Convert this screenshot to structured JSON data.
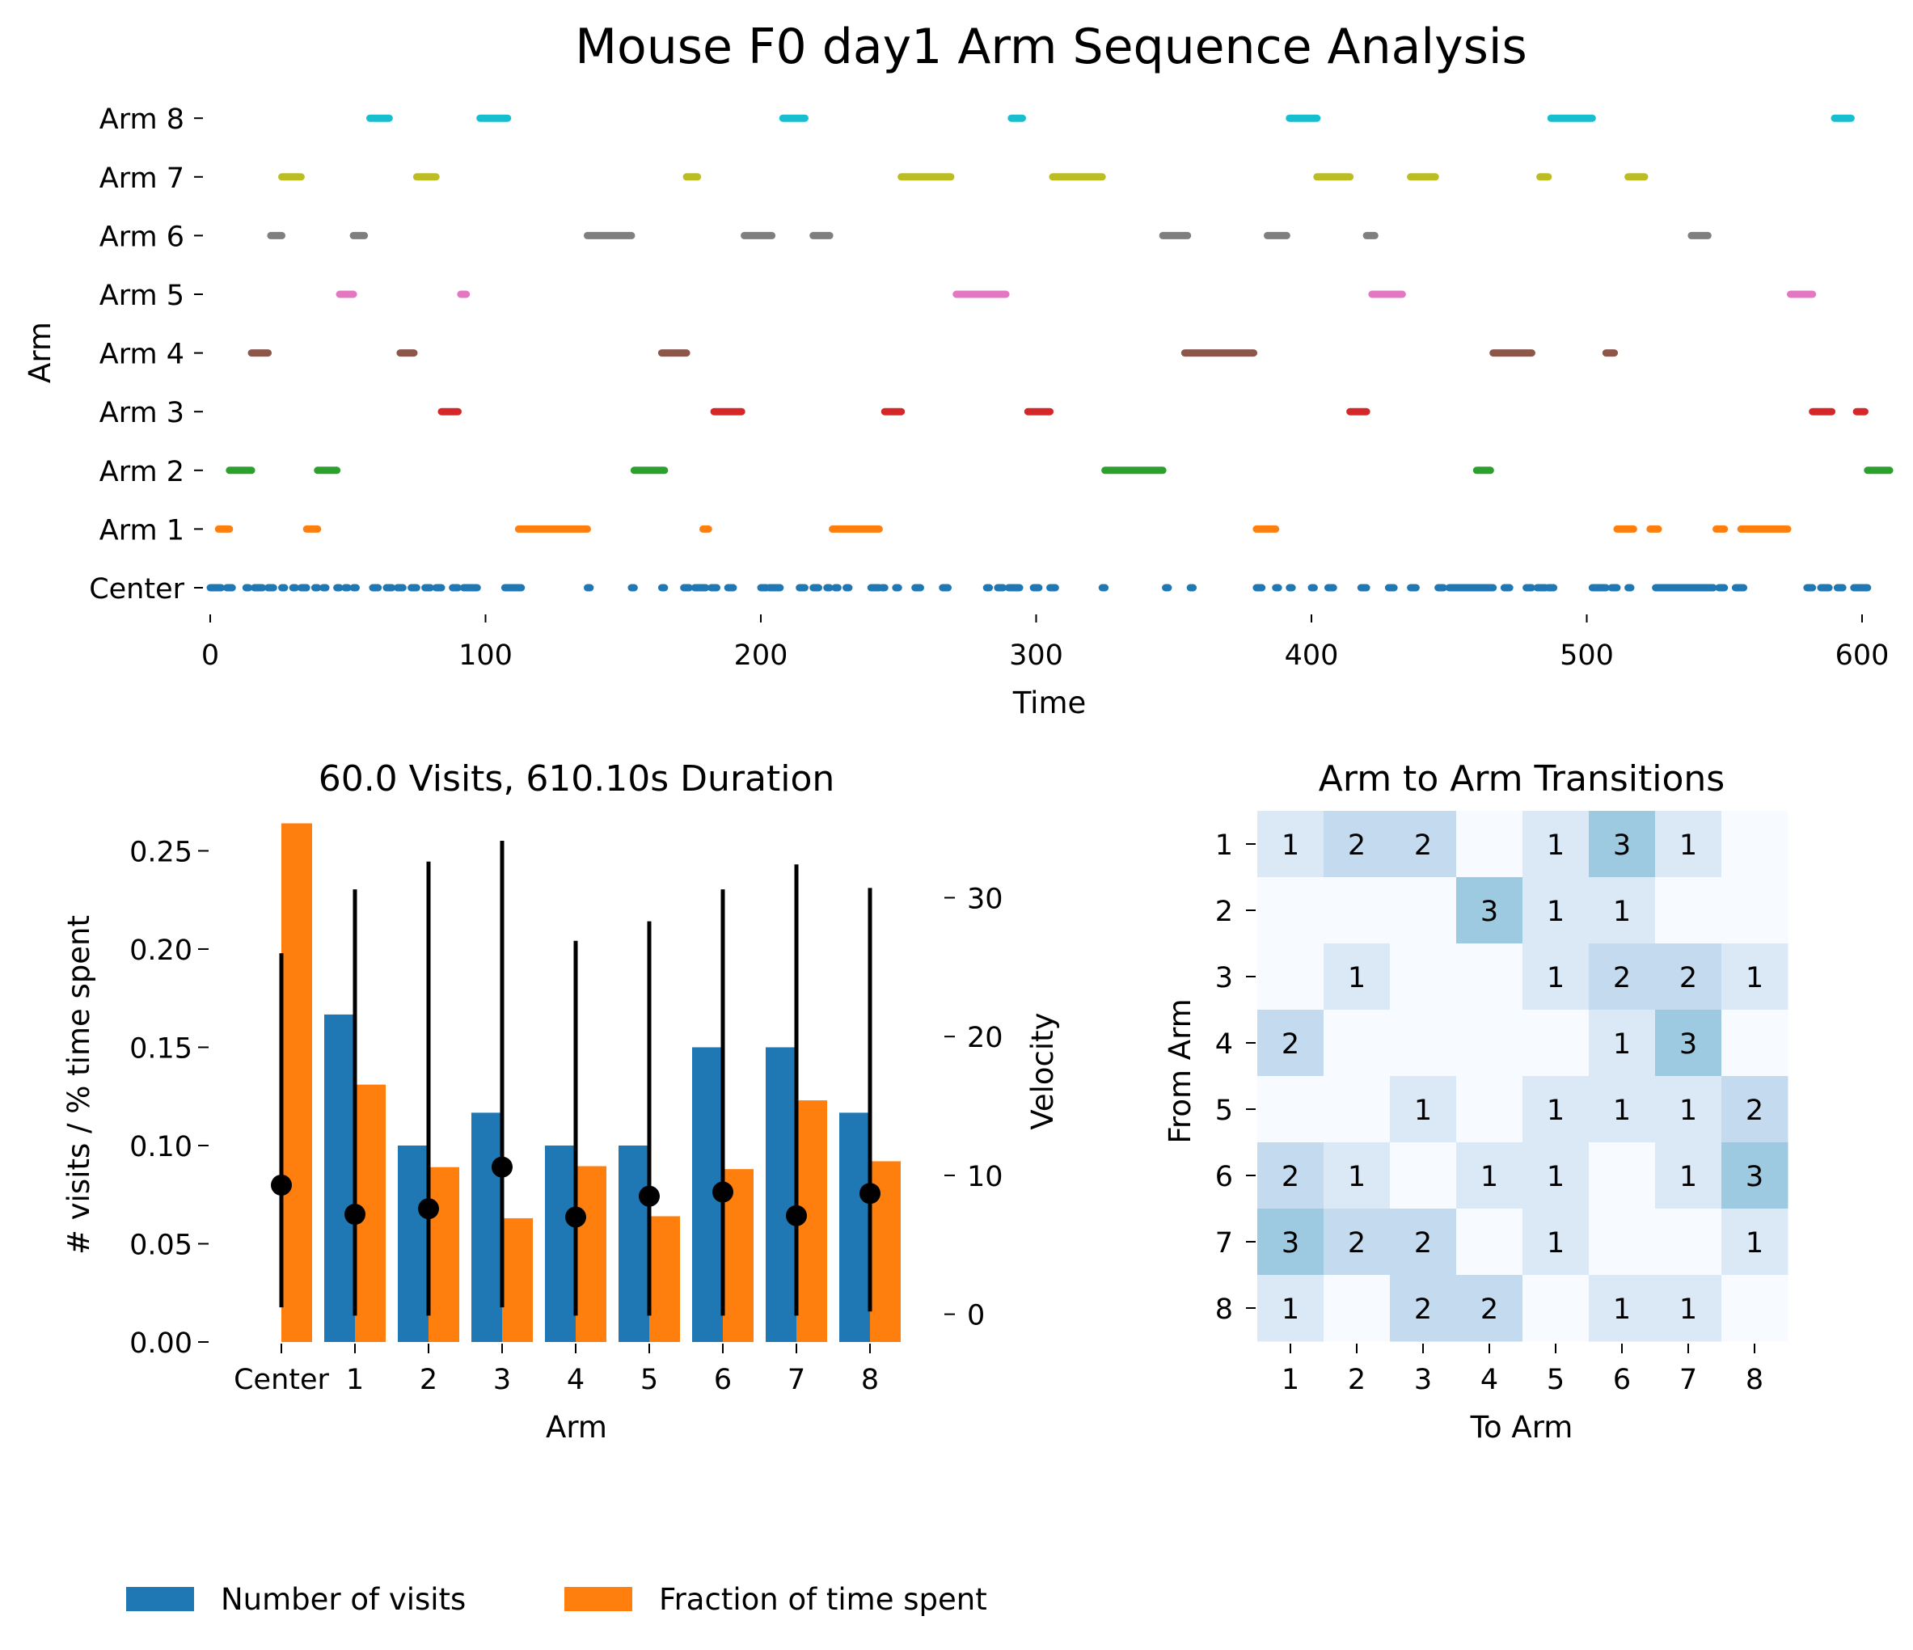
{
  "figure_title": "Mouse F0 day1 Arm Sequence Analysis",
  "chart_data": [
    {
      "type": "scatter",
      "subtype": "event-raster",
      "xlabel": "Time",
      "ylabel": "Arm",
      "xlim": [
        0,
        605
      ],
      "xticks": [
        0,
        100,
        200,
        300,
        400,
        500,
        600
      ],
      "ytick_labels": [
        "Center",
        "Arm 1",
        "Arm 2",
        "Arm 3",
        "Arm 4",
        "Arm 5",
        "Arm 6",
        "Arm 7",
        "Arm 8"
      ],
      "grid": false,
      "series": [
        {
          "color": "#1f77b4",
          "intervals": [
            [
              0,
              4
            ],
            [
              6,
              8
            ],
            [
              13,
              14
            ],
            [
              16,
              19
            ],
            [
              21,
              23
            ],
            [
              26,
              27
            ],
            [
              30,
              31
            ],
            [
              33,
              35
            ],
            [
              38,
              39
            ],
            [
              41,
              42
            ],
            [
              46,
              47
            ],
            [
              49,
              50
            ],
            [
              52,
              53
            ],
            [
              59,
              61
            ],
            [
              64,
              66
            ],
            [
              68,
              70
            ],
            [
              73,
              75
            ],
            [
              78,
              80
            ],
            [
              82,
              84
            ],
            [
              88,
              90
            ],
            [
              92,
              97
            ],
            [
              107,
              113
            ],
            [
              137,
              138
            ],
            [
              153,
              154
            ],
            [
              164,
              165
            ],
            [
              172,
              174
            ],
            [
              176,
              180
            ],
            [
              182,
              184
            ],
            [
              188,
              190
            ],
            [
              200,
              202
            ],
            [
              203,
              207
            ],
            [
              214,
              216
            ],
            [
              219,
              221
            ],
            [
              224,
              225
            ],
            [
              227,
              228
            ],
            [
              231,
              232
            ],
            [
              240,
              243
            ],
            [
              244,
              245
            ],
            [
              249,
              250
            ],
            [
              256,
              258
            ],
            [
              266,
              268
            ],
            [
              282,
              283
            ],
            [
              286,
              288
            ],
            [
              290,
              294
            ],
            [
              299,
              301
            ],
            [
              305,
              307
            ],
            [
              324,
              325
            ],
            [
              347,
              348
            ],
            [
              356,
              357
            ],
            [
              380,
              382
            ],
            [
              387,
              388
            ],
            [
              392,
              393
            ],
            [
              400,
              401
            ],
            [
              406,
              408
            ],
            [
              418,
              420
            ],
            [
              428,
              430
            ],
            [
              436,
              438
            ],
            [
              446,
              448
            ],
            [
              450,
              466
            ],
            [
              470,
              472
            ],
            [
              478,
              480
            ],
            [
              482,
              485
            ],
            [
              486,
              488
            ],
            [
              502,
              507
            ],
            [
              509,
              511
            ],
            [
              515,
              516
            ],
            [
              525,
              546
            ],
            [
              548,
              550
            ],
            [
              554,
              557
            ],
            [
              580,
              582
            ],
            [
              585,
              588
            ],
            [
              591,
              593
            ],
            [
              597,
              602
            ]
          ]
        },
        {
          "color": "#ff7f0e",
          "intervals": [
            [
              3,
              7
            ],
            [
              35,
              39
            ],
            [
              112,
              137
            ],
            [
              179,
              181
            ],
            [
              226,
              243
            ],
            [
              380,
              387
            ],
            [
              511,
              517
            ],
            [
              523,
              526
            ],
            [
              547,
              550
            ],
            [
              556,
              573
            ]
          ]
        },
        {
          "color": "#2ca02c",
          "intervals": [
            [
              7,
              15
            ],
            [
              39,
              46
            ],
            [
              154,
              165
            ],
            [
              325,
              346
            ],
            [
              460,
              465
            ],
            [
              602,
              610
            ]
          ]
        },
        {
          "color": "#d62728",
          "intervals": [
            [
              84,
              90
            ],
            [
              183,
              193
            ],
            [
              245,
              251
            ],
            [
              297,
              305
            ],
            [
              414,
              420
            ],
            [
              582,
              589
            ],
            [
              598,
              601
            ]
          ]
        },
        {
          "color": "#8c564b",
          "intervals": [
            [
              15,
              21
            ],
            [
              69,
              74
            ],
            [
              164,
              173
            ],
            [
              354,
              379
            ],
            [
              466,
              480
            ],
            [
              507,
              510
            ]
          ]
        },
        {
          "color": "#e377c2",
          "intervals": [
            [
              47,
              52
            ],
            [
              91,
              93
            ],
            [
              271,
              289
            ],
            [
              422,
              433
            ],
            [
              574,
              582
            ]
          ]
        },
        {
          "color": "#7f7f7f",
          "intervals": [
            [
              22,
              26
            ],
            [
              52,
              56
            ],
            [
              137,
              153
            ],
            [
              194,
              204
            ],
            [
              219,
              225
            ],
            [
              346,
              355
            ],
            [
              384,
              391
            ],
            [
              420,
              423
            ],
            [
              538,
              544
            ]
          ]
        },
        {
          "color": "#bcbd22",
          "intervals": [
            [
              26,
              33
            ],
            [
              75,
              82
            ],
            [
              173,
              177
            ],
            [
              251,
              269
            ],
            [
              306,
              324
            ],
            [
              402,
              414
            ],
            [
              436,
              445
            ],
            [
              483,
              486
            ],
            [
              515,
              521
            ]
          ]
        },
        {
          "color": "#17becf",
          "intervals": [
            [
              58,
              65
            ],
            [
              98,
              108
            ],
            [
              208,
              216
            ],
            [
              291,
              295
            ],
            [
              392,
              402
            ],
            [
              487,
              502
            ],
            [
              590,
              596
            ]
          ]
        }
      ]
    },
    {
      "type": "bar",
      "title": "60.0 Visits, 610.10s Duration",
      "xlabel": "Arm",
      "ylabel": "# visits / % time spent",
      "ylabel_right": "Velocity",
      "categories": [
        "Center",
        "1",
        "2",
        "3",
        "4",
        "5",
        "6",
        "7",
        "8"
      ],
      "ylim": [
        0,
        0.265
      ],
      "yticks": [
        "0.00",
        "0.05",
        "0.10",
        "0.15",
        "0.20",
        "0.25"
      ],
      "ylim_right": [
        -2,
        35.5
      ],
      "yticks_right": [
        "0",
        "10",
        "20",
        "30"
      ],
      "grid": false,
      "legend_position": "bottom-left",
      "series": [
        {
          "name": "Number of visits",
          "color": "#1f77b4",
          "values": [
            0,
            0.1667,
            0.1,
            0.1167,
            0.1,
            0.1,
            0.15,
            0.15,
            0.1167
          ]
        },
        {
          "name": "Fraction of time spent",
          "color": "#ff7f0e",
          "values": [
            0.264,
            0.131,
            0.089,
            0.063,
            0.0895,
            0.064,
            0.088,
            0.123,
            0.092
          ]
        }
      ],
      "velocity": {
        "color": "#000000",
        "mean": [
          9.3,
          7.2,
          7.6,
          10.6,
          7.0,
          8.5,
          8.8,
          7.1,
          8.7
        ],
        "low": [
          0.5,
          -0.1,
          -0.1,
          0.5,
          -0.1,
          -0.1,
          -0.1,
          -0.1,
          0.2
        ],
        "high": [
          26.0,
          30.6,
          32.6,
          34.1,
          26.9,
          28.3,
          30.6,
          32.4,
          30.7
        ]
      }
    },
    {
      "type": "heatmap",
      "title": "Arm to Arm Transitions",
      "xlabel": "To Arm",
      "ylabel": "From Arm",
      "x_labels": [
        "1",
        "2",
        "3",
        "4",
        "5",
        "6",
        "7",
        "8"
      ],
      "y_labels": [
        "1",
        "2",
        "3",
        "4",
        "5",
        "6",
        "7",
        "8"
      ],
      "values": [
        [
          1,
          2,
          2,
          0,
          1,
          3,
          1,
          0
        ],
        [
          0,
          0,
          0,
          3,
          1,
          1,
          0,
          0
        ],
        [
          0,
          1,
          0,
          0,
          1,
          2,
          2,
          1
        ],
        [
          2,
          0,
          0,
          0,
          0,
          1,
          3,
          0
        ],
        [
          0,
          0,
          1,
          0,
          1,
          1,
          1,
          2
        ],
        [
          2,
          1,
          0,
          1,
          1,
          0,
          1,
          3
        ],
        [
          3,
          2,
          2,
          0,
          1,
          0,
          0,
          1
        ],
        [
          1,
          0,
          2,
          2,
          0,
          1,
          1,
          0
        ]
      ],
      "colormap": [
        "#f7fbff",
        "#dbe9f6",
        "#c4daee",
        "#9ecae1"
      ]
    }
  ]
}
